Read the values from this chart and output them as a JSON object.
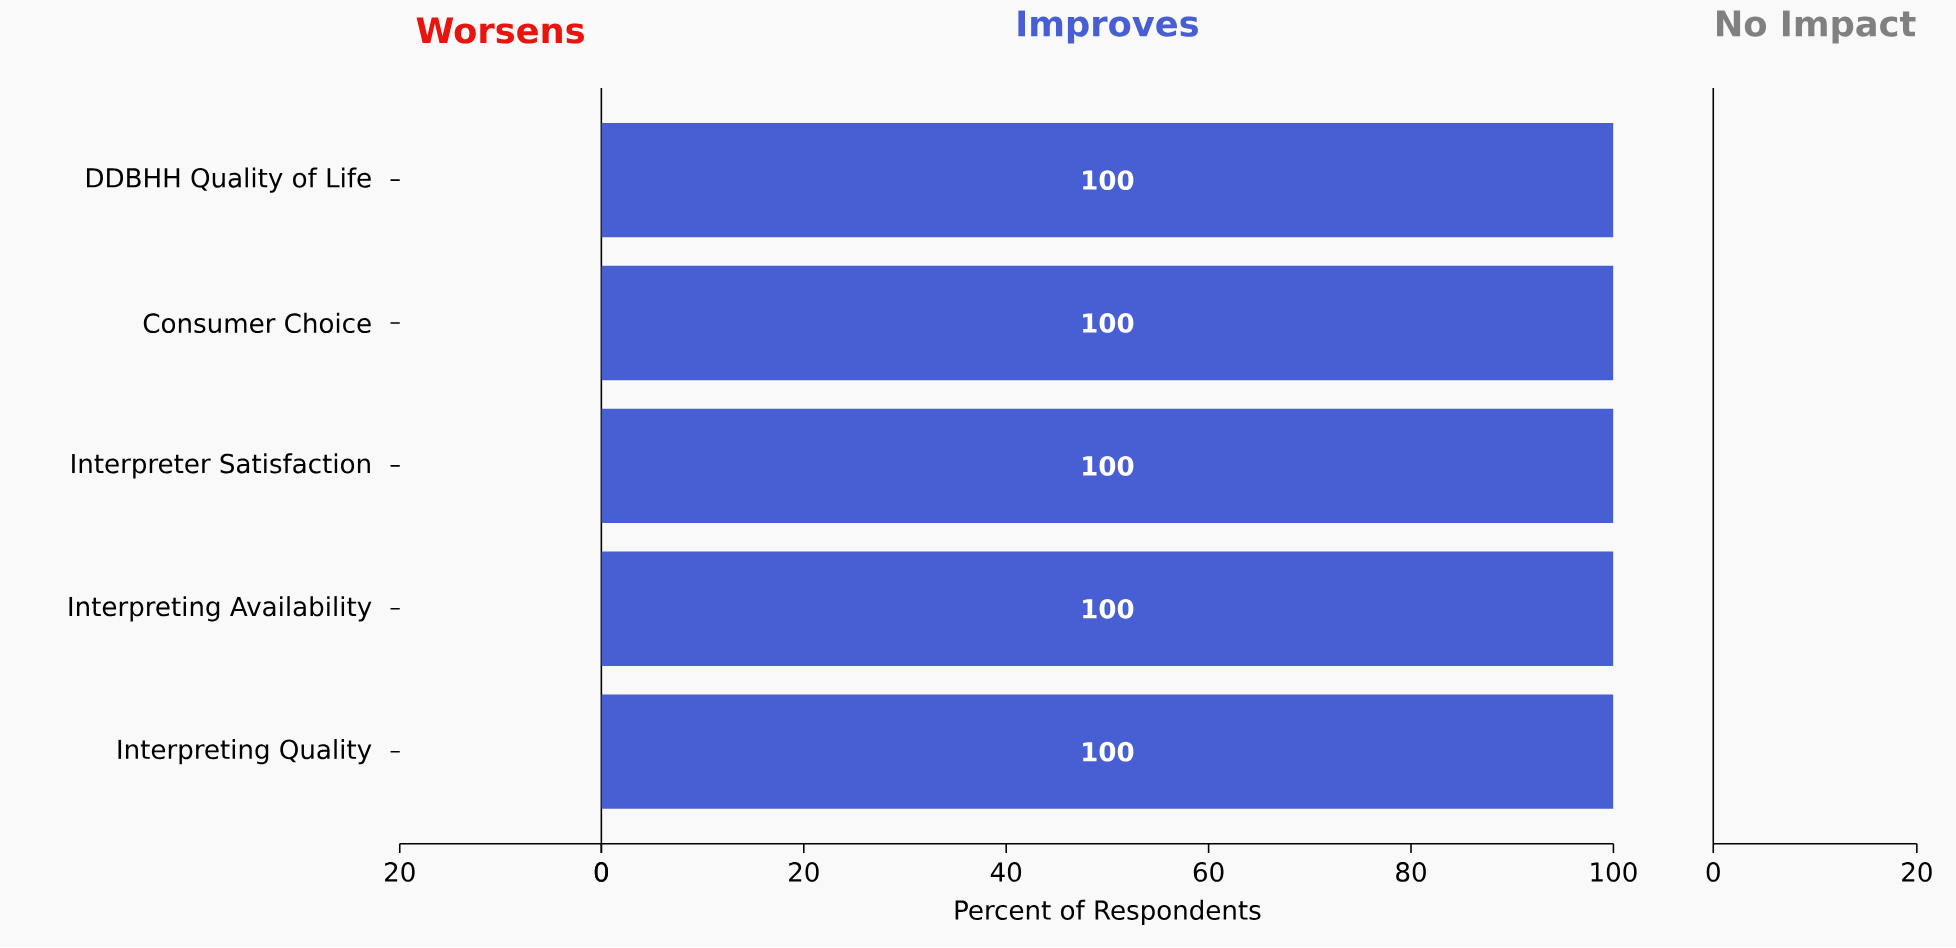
{
  "chart_data": [
    {
      "type": "other",
      "title": "Worsens",
      "annotations": [
        "20",
        "0"
      ]
    },
    {
      "type": "bar",
      "orientation": "horizontal",
      "title": "Improves",
      "xlabel": "Percent of Respondents",
      "categories": [
        "DDBHH Quality of Life",
        "Consumer Choice",
        "Interpreter Satisfaction",
        "Interpreting Availability",
        "Interpreting Quality"
      ],
      "values": [
        100,
        100,
        100,
        100,
        100
      ],
      "color": "#485fd3",
      "data_labels": true,
      "xlim": [
        0,
        100
      ],
      "xticks": [
        0,
        20,
        40,
        60,
        80,
        100
      ]
    },
    {
      "type": "other",
      "title": "No Impact",
      "annotations": [
        "0",
        "20"
      ]
    }
  ]
}
